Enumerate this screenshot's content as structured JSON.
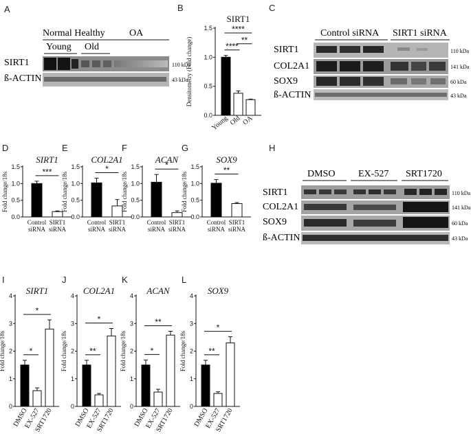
{
  "panel_letters": [
    "A",
    "B",
    "C",
    "D",
    "E",
    "F",
    "G",
    "H",
    "I",
    "J",
    "K",
    "L"
  ],
  "panel_a": {
    "group_normal": "Normal Healthy",
    "group_young": "Young",
    "group_old": "Old",
    "group_oa": "OA",
    "rows": [
      "SIRT1",
      "ß-ACTIN"
    ],
    "kda": [
      "110 kDa",
      "43 kDa"
    ]
  },
  "panel_c": {
    "group_control": "Control siRNA",
    "group_sirt1": "SIRT1 siRNA",
    "rows": [
      "SIRT1",
      "COL2A1",
      "SOX9",
      "ß-ACTIN"
    ],
    "kda": [
      "110 kDa",
      "141 kDa",
      "60 kDa",
      "43 kDa"
    ]
  },
  "panel_h": {
    "group_dmso": "DMSO",
    "group_ex": "EX-527",
    "group_srt": "SRT1720",
    "rows": [
      "SIRT1",
      "COL2A1",
      "SOX9",
      "ß-ACTIN"
    ],
    "kda": [
      "110 kDa",
      "141 kDa",
      "60 kDa",
      "43 kDa"
    ]
  },
  "chart_data": [
    {
      "panel": "B",
      "type": "bar",
      "title": "SIRT1",
      "title_italic": false,
      "ylabel": "Densitometry (Fold change)",
      "ylim": [
        0,
        1.5
      ],
      "yticks": [
        "0.0",
        "0.5",
        "1.0",
        "1.5"
      ],
      "categories": [
        "Young",
        "Old",
        "OA"
      ],
      "values": [
        1.0,
        0.38,
        0.27
      ],
      "errors": [
        0.03,
        0.04,
        0.01
      ],
      "fills": [
        "#000000",
        "#ffffff",
        "#ffffff"
      ],
      "significance": [
        {
          "from": 0,
          "to": 2,
          "label": "****"
        },
        {
          "from": 0,
          "to": 1,
          "label": "****"
        },
        {
          "from": 1,
          "to": 2,
          "label": "**"
        }
      ]
    },
    {
      "panel": "D",
      "type": "bar",
      "title": "SIRT1",
      "title_italic": true,
      "ylabel": "Fold change/18s",
      "ylim": [
        0,
        1.5
      ],
      "yticks": [
        "0.0",
        "0.5",
        "1.0",
        "1.5"
      ],
      "categories": [
        "Control siRNA",
        "SIRT1 siRNA"
      ],
      "values": [
        1.0,
        0.16
      ],
      "errors": [
        0.07,
        0.02
      ],
      "fills": [
        "#000000",
        "#ffffff"
      ],
      "significance": [
        {
          "from": 0,
          "to": 1,
          "label": "***"
        }
      ]
    },
    {
      "panel": "E",
      "type": "bar",
      "title": "COL2A1",
      "title_italic": true,
      "ylabel": "Fold change/18s",
      "ylim": [
        0,
        1.5
      ],
      "yticks": [
        "0.0",
        "0.5",
        "1.0",
        "1.5"
      ],
      "categories": [
        "Control siRNA",
        "SIRT1 siRNA"
      ],
      "values": [
        1.02,
        0.33
      ],
      "errors": [
        0.14,
        0.19
      ],
      "fills": [
        "#000000",
        "#ffffff"
      ],
      "significance": [
        {
          "from": 0,
          "to": 1,
          "label": "*"
        }
      ]
    },
    {
      "panel": "F",
      "type": "bar",
      "title": "ACAN",
      "title_italic": true,
      "ylabel": "Fold change/18s",
      "ylim": [
        0,
        1.5
      ],
      "yticks": [
        "0.0",
        "0.5",
        "1.0",
        "1.5"
      ],
      "categories": [
        "Control siRNA",
        "SIRT1 siRNA"
      ],
      "values": [
        1.04,
        0.13
      ],
      "errors": [
        0.23,
        0.05
      ],
      "fills": [
        "#000000",
        "#ffffff"
      ],
      "significance": [
        {
          "from": 0,
          "to": 1,
          "label": "*"
        }
      ]
    },
    {
      "panel": "G",
      "type": "bar",
      "title": "SOX9",
      "title_italic": true,
      "ylabel": "Fold change/18s",
      "ylim": [
        0,
        1.5
      ],
      "yticks": [
        "0.0",
        "0.5",
        "1.0",
        "1.5"
      ],
      "categories": [
        "Control siRNA",
        "SIRT1 siRNA"
      ],
      "values": [
        1.01,
        0.4
      ],
      "errors": [
        0.11,
        0.03
      ],
      "fills": [
        "#000000",
        "#ffffff"
      ],
      "significance": [
        {
          "from": 0,
          "to": 1,
          "label": "**"
        }
      ]
    },
    {
      "panel": "I",
      "type": "bar",
      "title": "SIRT1",
      "title_italic": true,
      "ylabel": "Fold change/18s",
      "ylim": [
        0,
        4
      ],
      "yticks": [
        "0",
        "1",
        "2",
        "3",
        "4"
      ],
      "categories": [
        "DMSO",
        "EX-527",
        "SRT1720"
      ],
      "values": [
        1.5,
        0.57,
        2.8
      ],
      "errors": [
        0.17,
        0.1,
        0.33
      ],
      "fills": [
        "#000000",
        "#ffffff",
        "#ffffff"
      ],
      "significance": [
        {
          "from": 0,
          "to": 1,
          "label": "*"
        },
        {
          "from": 0,
          "to": 2,
          "label": "*"
        }
      ]
    },
    {
      "panel": "J",
      "type": "bar",
      "title": "COL2A1",
      "title_italic": true,
      "ylabel": "Fold change/18s",
      "ylim": [
        0,
        4
      ],
      "yticks": [
        "0",
        "1",
        "2",
        "3",
        "4"
      ],
      "categories": [
        "DMSO",
        "EX-527",
        "SRT1720"
      ],
      "values": [
        1.5,
        0.42,
        2.55
      ],
      "errors": [
        0.17,
        0.05,
        0.27
      ],
      "fills": [
        "#000000",
        "#ffffff",
        "#ffffff"
      ],
      "significance": [
        {
          "from": 0,
          "to": 1,
          "label": "**"
        },
        {
          "from": 0,
          "to": 2,
          "label": "*"
        }
      ]
    },
    {
      "panel": "K",
      "type": "bar",
      "title": "ACAN",
      "title_italic": true,
      "ylabel": "Fold change/18s",
      "ylim": [
        0,
        4
      ],
      "yticks": [
        "0",
        "1",
        "2",
        "3",
        "4"
      ],
      "categories": [
        "DMSO",
        "EX-527",
        "SRT1720"
      ],
      "values": [
        1.5,
        0.52,
        2.58
      ],
      "errors": [
        0.18,
        0.1,
        0.14
      ],
      "fills": [
        "#000000",
        "#ffffff",
        "#ffffff"
      ],
      "significance": [
        {
          "from": 0,
          "to": 1,
          "label": "*"
        },
        {
          "from": 0,
          "to": 2,
          "label": "**"
        }
      ]
    },
    {
      "panel": "L",
      "type": "bar",
      "title": "SOX9",
      "title_italic": true,
      "ylabel": "Fold change/18s",
      "ylim": [
        0,
        4
      ],
      "yticks": [
        "0",
        "1",
        "2",
        "3",
        "4"
      ],
      "categories": [
        "DMSO",
        "EX-527",
        "SRT1720"
      ],
      "values": [
        1.5,
        0.47,
        2.3
      ],
      "errors": [
        0.17,
        0.06,
        0.22
      ],
      "fills": [
        "#000000",
        "#ffffff",
        "#ffffff"
      ],
      "significance": [
        {
          "from": 0,
          "to": 1,
          "label": "**"
        },
        {
          "from": 0,
          "to": 2,
          "label": "*"
        }
      ]
    }
  ]
}
